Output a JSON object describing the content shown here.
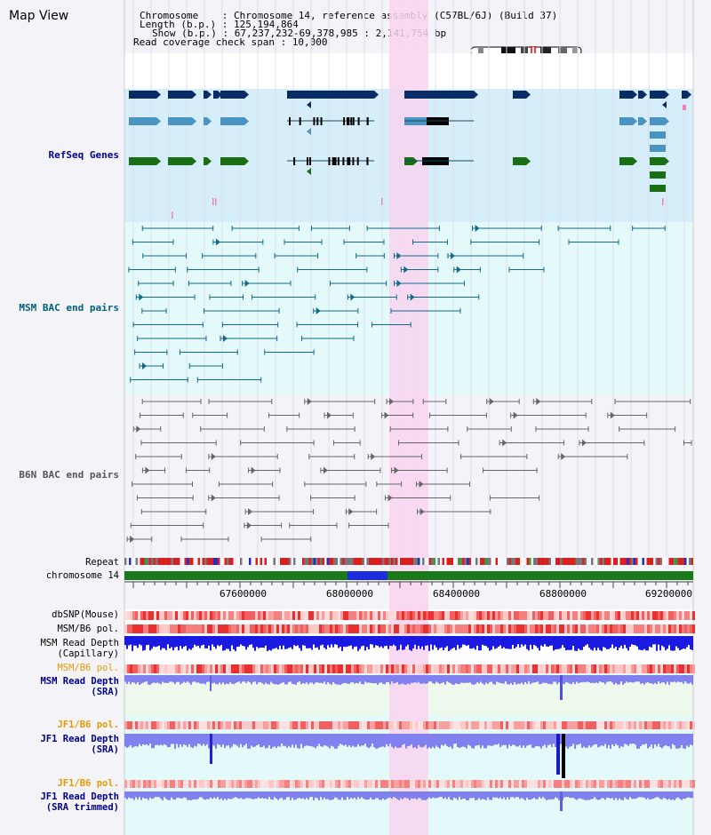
{
  "title": "Map View",
  "header": {
    "chromosome": "Chromosome    : Chromosome 14, reference assembly (C57BL/6J) (Build 37)",
    "length": "Length (b.p.) : 125,194,864",
    "show": "Show (b.p.) : 67,237,232-69,378,985 : 2,141,754 bp",
    "span": "Read coverage check span : 10,000"
  },
  "tracks": {
    "refseq": "RefSeq Genes",
    "msm_bac": "MSM BAC end pairs",
    "b6n_bac": "B6N BAC end pairs",
    "repeat": "Repeat",
    "chrom": "chromosome 14",
    "dbsnp": "dbSNP(Mouse)",
    "msm_b6_pol": "MSM/B6 pol.",
    "msm_depth_cap_1": "MSM Read Depth",
    "msm_depth_cap_2": "(Capillary)",
    "msm_b6_pol2": "MSM/B6 pol.",
    "msm_depth_sra_1": "MSM Read Depth",
    "msm_depth_sra_2": "(SRA)",
    "jf1_pol": "JF1/B6 pol.",
    "jf1_depth_1": "JF1 Read Depth",
    "jf1_depth_2": "(SRA)",
    "jf1_pol2": "JF1/B6 pol.",
    "jf1_trim_1": "JF1 Read Depth",
    "jf1_trim_2": "(SRA trimmed)"
  },
  "axis_ticks": [
    "67600000",
    "68000000",
    "68400000",
    "68800000",
    "69200000"
  ],
  "colors": {
    "refseq_bg": "#d6eefa",
    "msm_bg": "#e4fafa",
    "highlight": "#f8d4f0",
    "msm_label": "#00607a",
    "b6n_label": "#555555",
    "refseq_label": "#00008b",
    "orange_label": "#e89a00",
    "blue_label": "#00008b"
  }
}
